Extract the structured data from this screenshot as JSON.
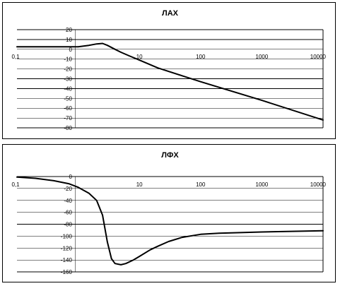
{
  "chart_data": [
    {
      "type": "line",
      "title": "ЛАХ",
      "xscale": "log",
      "xlim": [
        0.1,
        10000
      ],
      "ylim": [
        -80,
        20
      ],
      "y_step": 10,
      "x_tick_labels": [
        "0,1",
        "10",
        "100",
        "1000",
        "10000"
      ],
      "y_tick_labels": [
        "20",
        "10",
        "0",
        "-10",
        "-20",
        "-30",
        "-40",
        "-50",
        "-60",
        "-70",
        "-80"
      ],
      "grid": true,
      "series": [
        {
          "x": [
            0.1,
            0.3,
            1,
            1.5,
            2,
            2.5,
            3,
            4,
            5,
            7,
            10,
            20,
            50,
            100,
            1000,
            10000
          ],
          "values": [
            2.5,
            2.5,
            2.5,
            4,
            5.5,
            6,
            4,
            0,
            -3,
            -7,
            -11,
            -19,
            -27,
            -33,
            -52,
            -72
          ]
        }
      ]
    },
    {
      "type": "line",
      "title": "ЛФХ",
      "xscale": "log",
      "xlim": [
        0.1,
        10000
      ],
      "ylim": [
        -160,
        0
      ],
      "y_step": 20,
      "x_tick_labels": [
        "0,1",
        "10",
        "100",
        "1000",
        "10000"
      ],
      "y_tick_labels": [
        "0",
        "-20",
        "-40",
        "-60",
        "-80",
        "-100",
        "-120",
        "-140",
        "-160"
      ],
      "grid": true,
      "series": [
        {
          "x": [
            0.1,
            0.2,
            0.4,
            0.7,
            1,
            1.5,
            2,
            2.5,
            3,
            3.5,
            4,
            5,
            6,
            8,
            10,
            15,
            20,
            30,
            50,
            100,
            200,
            1000,
            10000
          ],
          "values": [
            -1,
            -3,
            -7,
            -12,
            -18,
            -28,
            -40,
            -65,
            -110,
            -138,
            -146,
            -148,
            -146,
            -140,
            -134,
            -123,
            -117,
            -109,
            -102,
            -97,
            -95,
            -93,
            -91
          ]
        }
      ]
    }
  ]
}
